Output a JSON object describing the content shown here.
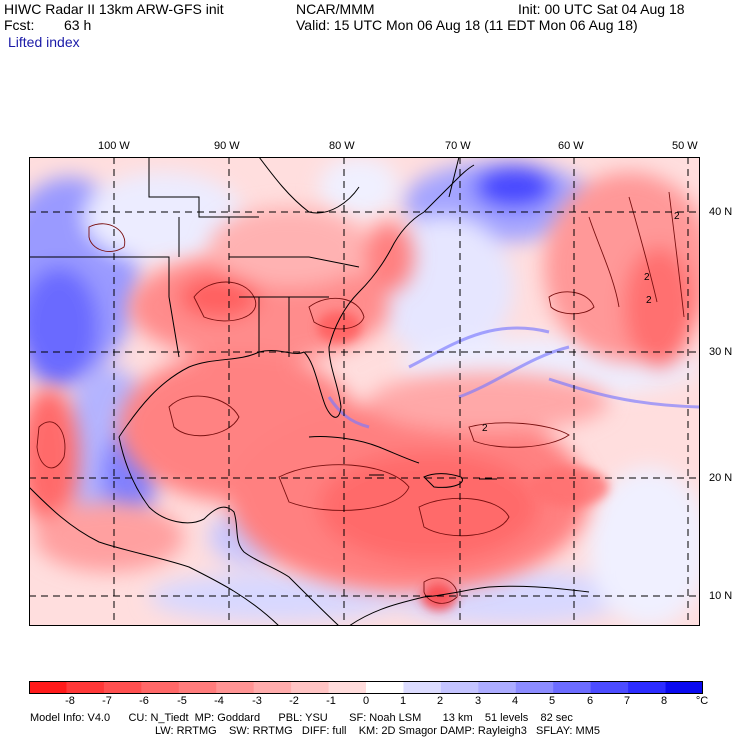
{
  "header": {
    "title": "HIWC Radar II 13km ARW-GFS init",
    "org": "NCAR/MMM",
    "init": "Init: 00 UTC Sat 04 Aug 18",
    "fcst_label": "Fcst:",
    "fcst_value": "63 h",
    "valid": "Valid: 15 UTC Mon 06 Aug 18 (11 EDT Mon 06 Aug 18)",
    "field": "Lifted index"
  },
  "map": {
    "lon_labels": [
      "100 W",
      "90 W",
      "80 W",
      "70 W",
      "60 W",
      "50 W"
    ],
    "lat_labels": [
      "40 N",
      "30 N",
      "20 N",
      "10 N"
    ],
    "contour_labels": [
      "2",
      "2",
      "2",
      "2"
    ]
  },
  "colorbar": {
    "ticks": [
      "-8",
      "-7",
      "-6",
      "-5",
      "-4",
      "-3",
      "-2",
      "-1",
      "0",
      "1",
      "2",
      "3",
      "4",
      "5",
      "6",
      "7",
      "8"
    ],
    "unit": "°C",
    "colors": [
      "#ff1a1a",
      "#ff3838",
      "#ff5050",
      "#ff6868",
      "#ff7c7c",
      "#ff9494",
      "#ffacac",
      "#ffc4c4",
      "#ffdcdc",
      "#ffffff",
      "#dcdcff",
      "#c4c4ff",
      "#acacff",
      "#8c8cff",
      "#6c6cff",
      "#4c4cff",
      "#2c2cff",
      "#0a0af0"
    ]
  },
  "footer": {
    "line1": "Model Info: V4.0      CU: N_Tiedt  MP: Goddard      PBL: YSU       SF: Noah LSM       13 km    51 levels    82 sec",
    "line2": "LW: RRTMG    SW: RRTMG   DIFF: full    KM: 2D Smagor DAMP: Rayleigh3   SFLAY: MM5"
  }
}
